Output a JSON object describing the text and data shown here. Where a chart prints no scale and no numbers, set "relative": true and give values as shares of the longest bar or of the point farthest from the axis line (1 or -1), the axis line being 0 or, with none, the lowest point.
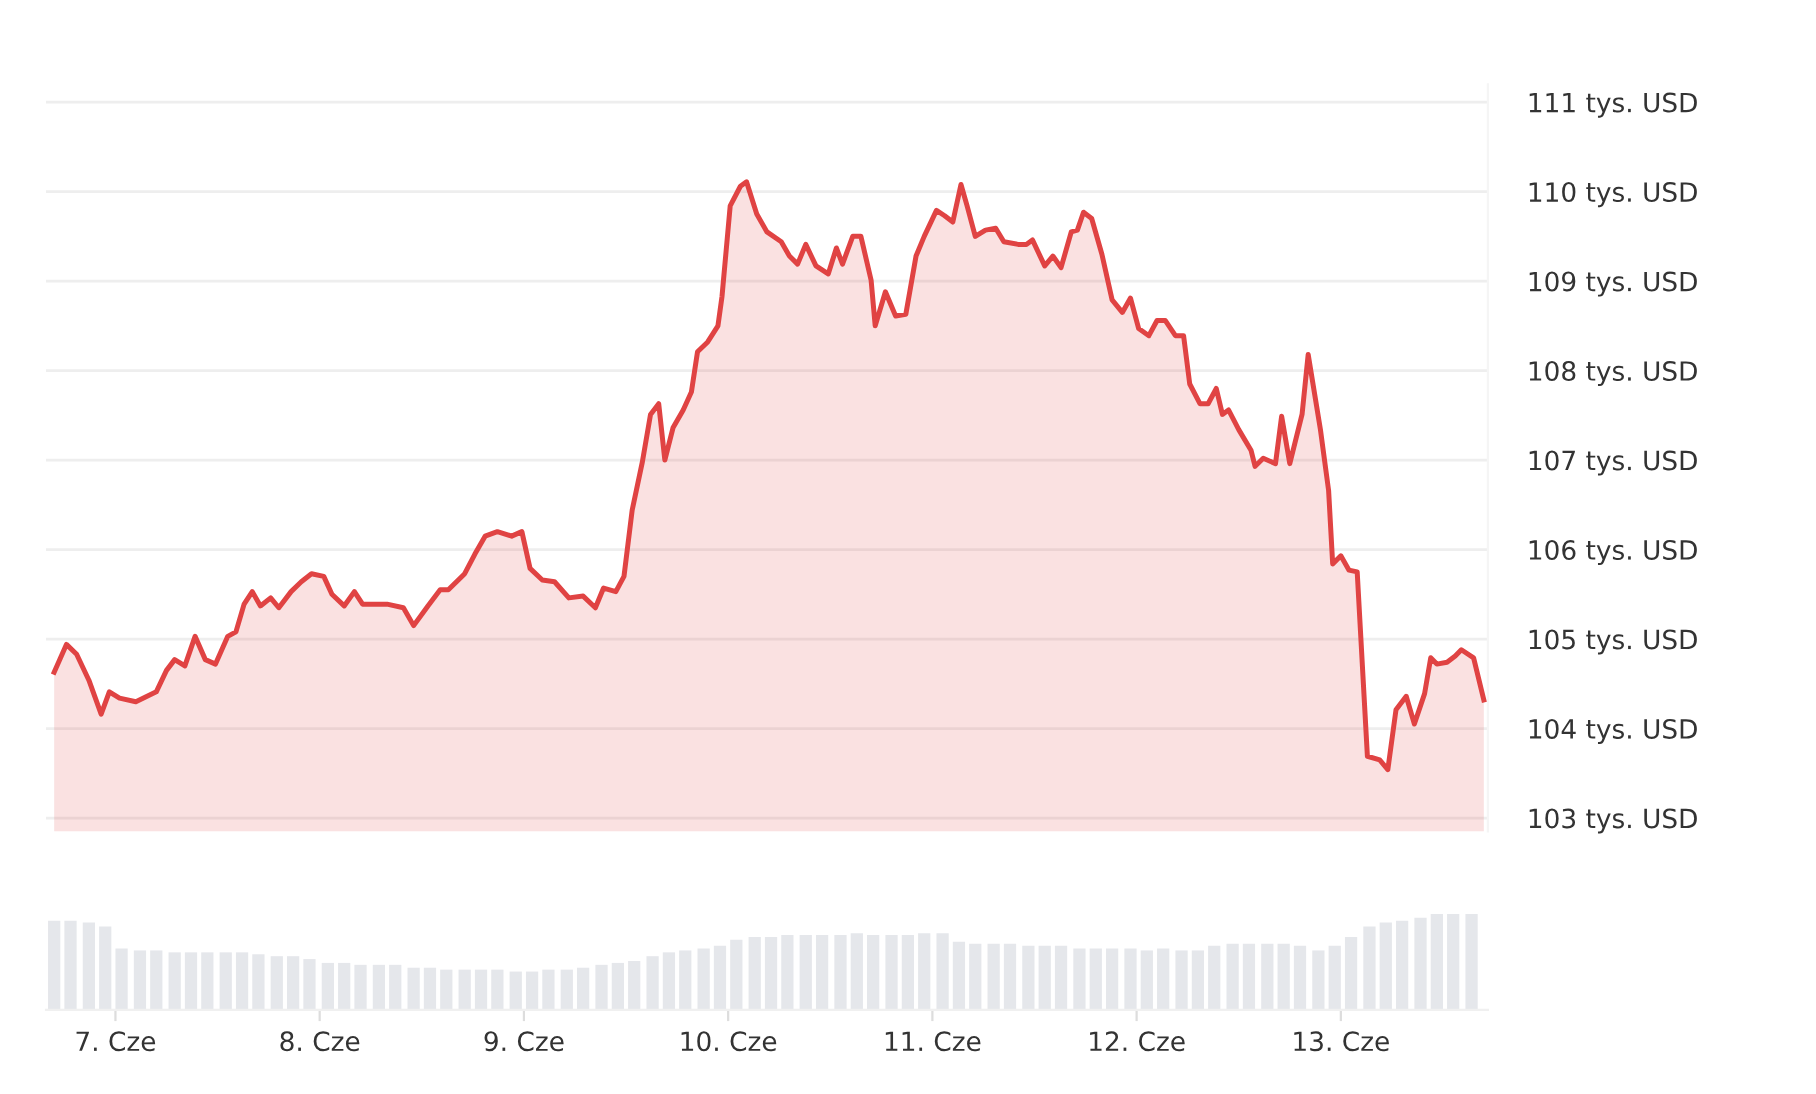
{
  "chart_data": [
    {
      "type": "area",
      "tick_labels": "y",
      "grid": "y",
      "marker": "none",
      "line_style": "solid",
      "xlim": [
        6.66,
        13.72
      ],
      "ylim": [
        102.85,
        111.2
      ],
      "yticks": [
        {
          "value": 103,
          "label": "103 tys. USD"
        },
        {
          "value": 104,
          "label": "104 tys. USD"
        },
        {
          "value": 105,
          "label": "105 tys. USD"
        },
        {
          "value": 106,
          "label": "106 tys. USD"
        },
        {
          "value": 107,
          "label": "107 tys. USD"
        },
        {
          "value": 108,
          "label": "108 tys. USD"
        },
        {
          "value": 109,
          "label": "109 tys. USD"
        },
        {
          "value": 110,
          "label": "110 tys. USD"
        },
        {
          "value": 111,
          "label": "111 tys. USD"
        }
      ],
      "series": [
        {
          "color": "#e04343",
          "x": [
            6.7,
            6.76,
            6.81,
            6.87,
            6.93,
            6.97,
            7.02,
            7.1,
            7.2,
            7.25,
            7.29,
            7.34,
            7.39,
            7.44,
            7.49,
            7.55,
            7.59,
            7.63,
            7.67,
            7.71,
            7.76,
            7.8,
            7.86,
            7.91,
            7.96,
            8.02,
            8.06,
            8.12,
            8.17,
            8.21,
            8.26,
            8.33,
            8.41,
            8.46,
            8.53,
            8.59,
            8.63,
            8.71,
            8.76,
            8.81,
            8.87,
            8.94,
            8.99,
            9.03,
            9.09,
            9.15,
            9.22,
            9.29,
            9.35,
            9.39,
            9.45,
            9.49,
            9.53,
            9.58,
            9.62,
            9.66,
            9.69,
            9.73,
            9.78,
            9.82,
            9.85,
            9.9,
            9.95,
            9.97,
            10.01,
            10.06,
            10.09,
            10.14,
            10.19,
            10.26,
            10.3,
            10.34,
            10.38,
            10.43,
            10.49,
            10.53,
            10.56,
            10.61,
            10.65,
            10.7,
            10.72,
            10.77,
            10.82,
            10.87,
            10.92,
            10.96,
            11.02,
            11.06,
            11.1,
            11.14,
            11.17,
            11.21,
            11.26,
            11.31,
            11.35,
            11.42,
            11.46,
            11.49,
            11.55,
            11.59,
            11.63,
            11.68,
            11.71,
            11.74,
            11.78,
            11.83,
            11.88,
            11.93,
            11.97,
            12.01,
            12.06,
            12.1,
            12.14,
            12.19,
            12.23,
            12.26,
            12.31,
            12.35,
            12.39,
            12.42,
            12.45,
            12.5,
            12.56,
            12.58,
            12.62,
            12.68,
            12.71,
            12.75,
            12.81,
            12.84,
            12.9,
            12.94,
            12.96,
            13.0,
            13.04,
            13.08,
            13.13,
            13.19,
            13.23,
            13.27,
            13.32,
            13.36,
            13.41,
            13.44,
            13.47,
            13.52,
            13.56,
            13.59,
            13.65,
            13.7
          ],
          "values": [
            104.63,
            104.94,
            104.83,
            104.54,
            104.16,
            104.41,
            104.34,
            104.3,
            104.41,
            104.65,
            104.77,
            104.7,
            105.03,
            104.77,
            104.72,
            105.03,
            105.08,
            105.39,
            105.53,
            105.37,
            105.46,
            105.35,
            105.53,
            105.64,
            105.73,
            105.7,
            105.5,
            105.37,
            105.53,
            105.39,
            105.39,
            105.39,
            105.35,
            105.15,
            105.37,
            105.55,
            105.55,
            105.73,
            105.95,
            106.15,
            106.2,
            106.15,
            106.2,
            105.79,
            105.66,
            105.64,
            105.46,
            105.48,
            105.35,
            105.57,
            105.53,
            105.7,
            106.44,
            106.98,
            107.51,
            107.63,
            107.0,
            107.36,
            107.56,
            107.76,
            108.21,
            108.32,
            108.5,
            108.83,
            109.84,
            110.06,
            110.11,
            109.75,
            109.55,
            109.44,
            109.28,
            109.19,
            109.41,
            109.17,
            109.08,
            109.37,
            109.19,
            109.5,
            109.5,
            109.01,
            108.5,
            108.88,
            108.61,
            108.63,
            109.28,
            109.5,
            109.79,
            109.73,
            109.66,
            110.08,
            109.84,
            109.5,
            109.57,
            109.59,
            109.44,
            109.41,
            109.41,
            109.46,
            109.17,
            109.28,
            109.15,
            109.55,
            109.57,
            109.77,
            109.7,
            109.3,
            108.79,
            108.65,
            108.81,
            108.47,
            108.39,
            108.56,
            108.56,
            108.39,
            108.39,
            107.85,
            107.63,
            107.63,
            107.8,
            107.51,
            107.56,
            107.34,
            107.11,
            106.93,
            107.02,
            106.96,
            107.49,
            106.96,
            107.51,
            108.18,
            107.34,
            106.66,
            105.84,
            105.93,
            105.77,
            105.75,
            103.69,
            103.65,
            103.54,
            104.21,
            104.36,
            104.05,
            104.39,
            104.79,
            104.72,
            104.74,
            104.81,
            104.88,
            104.79,
            104.32
          ]
        }
      ]
    },
    {
      "type": "bar",
      "relative": true,
      "tick_labels": "x",
      "grid": false,
      "xlim": [
        6.66,
        13.72
      ],
      "xticks": [
        {
          "value": 7,
          "label": "7. Cze"
        },
        {
          "value": 8,
          "label": "8. Cze"
        },
        {
          "value": 9,
          "label": "9. Cze"
        },
        {
          "value": 10,
          "label": "10. Cze"
        },
        {
          "value": 11,
          "label": "11. Cze"
        },
        {
          "value": 12,
          "label": "12. Cze"
        },
        {
          "value": 13,
          "label": "13. Cze"
        }
      ],
      "series": [
        {
          "color": "#e5e7eb",
          "x": [
            6.7,
            6.78,
            6.87,
            6.95,
            7.03,
            7.12,
            7.2,
            7.29,
            7.37,
            7.45,
            7.54,
            7.62,
            7.7,
            7.79,
            7.87,
            7.95,
            8.04,
            8.12,
            8.2,
            8.29,
            8.37,
            8.46,
            8.54,
            8.62,
            8.71,
            8.79,
            8.87,
            8.96,
            9.04,
            9.12,
            9.21,
            9.29,
            9.38,
            9.46,
            9.54,
            9.63,
            9.71,
            9.79,
            9.88,
            9.96,
            10.04,
            10.13,
            10.21,
            10.29,
            10.38,
            10.46,
            10.55,
            10.63,
            10.71,
            10.8,
            10.88,
            10.96,
            11.05,
            11.13,
            11.21,
            11.3,
            11.38,
            11.47,
            11.55,
            11.63,
            11.72,
            11.8,
            11.88,
            11.97,
            12.05,
            12.13,
            12.22,
            12.3,
            12.38,
            12.47,
            12.55,
            12.64,
            12.72,
            12.8,
            12.89,
            12.97,
            13.05,
            13.14,
            13.22,
            13.3,
            13.39,
            13.47,
            13.55,
            13.64
          ],
          "values": [
            0.93,
            0.93,
            0.91,
            0.87,
            0.64,
            0.62,
            0.62,
            0.6,
            0.6,
            0.6,
            0.6,
            0.6,
            0.58,
            0.56,
            0.56,
            0.53,
            0.49,
            0.49,
            0.47,
            0.47,
            0.47,
            0.44,
            0.44,
            0.42,
            0.42,
            0.42,
            0.42,
            0.4,
            0.4,
            0.42,
            0.42,
            0.44,
            0.47,
            0.49,
            0.51,
            0.56,
            0.6,
            0.62,
            0.64,
            0.67,
            0.73,
            0.76,
            0.76,
            0.78,
            0.78,
            0.78,
            0.78,
            0.8,
            0.78,
            0.78,
            0.78,
            0.8,
            0.8,
            0.71,
            0.69,
            0.69,
            0.69,
            0.67,
            0.67,
            0.67,
            0.64,
            0.64,
            0.64,
            0.64,
            0.62,
            0.64,
            0.62,
            0.62,
            0.67,
            0.69,
            0.69,
            0.69,
            0.69,
            0.67,
            0.62,
            0.67,
            0.76,
            0.87,
            0.91,
            0.93,
            0.96,
            1,
            1,
            1
          ]
        }
      ]
    }
  ]
}
